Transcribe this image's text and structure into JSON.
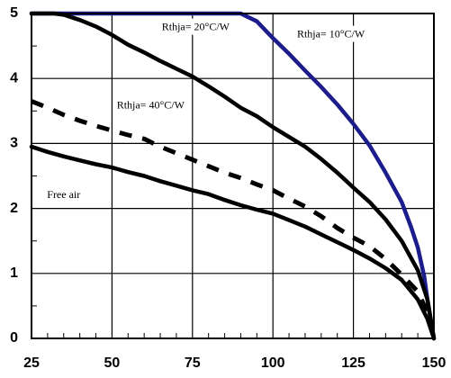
{
  "chart_data": {
    "type": "line",
    "title": "",
    "xlabel": "",
    "ylabel": "",
    "xlim": [
      25,
      150
    ],
    "ylim": [
      0,
      5
    ],
    "x_ticks": [
      25,
      50,
      75,
      100,
      125,
      150
    ],
    "y_ticks": [
      0,
      1,
      2,
      3,
      4,
      5
    ],
    "grid": true,
    "series": [
      {
        "color": "#1c1c8c",
        "style": "solid",
        "points": [
          [
            25,
            5
          ],
          [
            35,
            5
          ],
          [
            90,
            5
          ],
          [
            95,
            4.88
          ],
          [
            100,
            4.62
          ],
          [
            105,
            4.38
          ],
          [
            110,
            4.12
          ],
          [
            115,
            3.87
          ],
          [
            120,
            3.6
          ],
          [
            125,
            3.3
          ],
          [
            130,
            2.97
          ],
          [
            135,
            2.55
          ],
          [
            140,
            2.1
          ],
          [
            143,
            1.7
          ],
          [
            145,
            1.4
          ],
          [
            147,
            0.95
          ],
          [
            148,
            0.6
          ],
          [
            150,
            0
          ]
        ]
      },
      {
        "color": "#000000",
        "style": "solid",
        "points": [
          [
            25,
            5
          ],
          [
            32,
            5
          ],
          [
            35,
            4.98
          ],
          [
            40,
            4.9
          ],
          [
            45,
            4.8
          ],
          [
            50,
            4.67
          ],
          [
            55,
            4.52
          ],
          [
            60,
            4.4
          ],
          [
            65,
            4.27
          ],
          [
            70,
            4.15
          ],
          [
            75,
            4.03
          ],
          [
            80,
            3.88
          ],
          [
            85,
            3.72
          ],
          [
            90,
            3.55
          ],
          [
            95,
            3.42
          ],
          [
            100,
            3.25
          ],
          [
            105,
            3.1
          ],
          [
            110,
            2.95
          ],
          [
            115,
            2.76
          ],
          [
            120,
            2.55
          ],
          [
            125,
            2.32
          ],
          [
            130,
            2.1
          ],
          [
            135,
            1.83
          ],
          [
            140,
            1.5
          ],
          [
            145,
            1.05
          ],
          [
            148,
            0.6
          ],
          [
            150,
            0
          ]
        ]
      },
      {
        "color": "#000000",
        "style": "dashed",
        "points": [
          [
            25,
            3.65
          ],
          [
            30,
            3.55
          ],
          [
            35,
            3.44
          ],
          [
            40,
            3.35
          ],
          [
            45,
            3.27
          ],
          [
            50,
            3.2
          ],
          [
            55,
            3.13
          ],
          [
            60,
            3.07
          ],
          [
            65,
            2.95
          ],
          [
            70,
            2.85
          ],
          [
            75,
            2.75
          ],
          [
            80,
            2.65
          ],
          [
            85,
            2.55
          ],
          [
            90,
            2.47
          ],
          [
            95,
            2.37
          ],
          [
            100,
            2.28
          ],
          [
            105,
            2.15
          ],
          [
            110,
            2.03
          ],
          [
            115,
            1.88
          ],
          [
            120,
            1.7
          ],
          [
            125,
            1.55
          ],
          [
            130,
            1.42
          ],
          [
            135,
            1.22
          ],
          [
            140,
            0.98
          ],
          [
            145,
            0.72
          ],
          [
            148,
            0.4
          ],
          [
            150,
            0
          ]
        ]
      },
      {
        "color": "#000000",
        "style": "solid",
        "points": [
          [
            25,
            2.95
          ],
          [
            30,
            2.87
          ],
          [
            35,
            2.8
          ],
          [
            40,
            2.74
          ],
          [
            45,
            2.68
          ],
          [
            50,
            2.63
          ],
          [
            55,
            2.56
          ],
          [
            60,
            2.5
          ],
          [
            65,
            2.42
          ],
          [
            70,
            2.35
          ],
          [
            75,
            2.28
          ],
          [
            80,
            2.22
          ],
          [
            85,
            2.13
          ],
          [
            90,
            2.05
          ],
          [
            95,
            1.98
          ],
          [
            100,
            1.92
          ],
          [
            105,
            1.82
          ],
          [
            110,
            1.72
          ],
          [
            115,
            1.6
          ],
          [
            120,
            1.48
          ],
          [
            125,
            1.36
          ],
          [
            130,
            1.23
          ],
          [
            135,
            1.08
          ],
          [
            140,
            0.9
          ],
          [
            145,
            0.6
          ],
          [
            148,
            0.3
          ],
          [
            150,
            0
          ]
        ]
      }
    ],
    "annotations": [
      {
        "text": "Rthja= 20°C/W",
        "x": 76,
        "y": 4.78
      },
      {
        "text": "Rthja= 10°C/W",
        "x": 118,
        "y": 4.67
      },
      {
        "text": "Rthja= 40°C/W",
        "x": 62,
        "y": 3.58
      },
      {
        "text": "Free air",
        "x": 35,
        "y": 2.2
      }
    ]
  }
}
